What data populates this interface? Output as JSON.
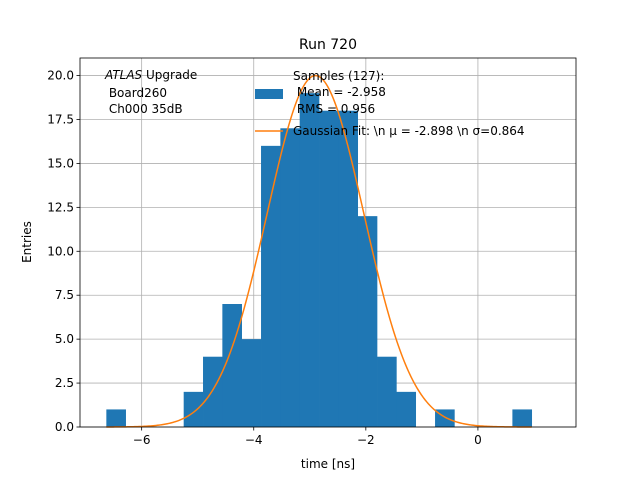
{
  "chart_data": {
    "type": "bar",
    "title": "Run 720",
    "xlabel": "time [ns]",
    "ylabel": "Entries",
    "xlim": [
      -7.1,
      1.75
    ],
    "ylim": [
      0,
      21
    ],
    "grid": true,
    "x_ticks": [
      -6,
      -4,
      -2,
      0
    ],
    "x_tick_labels": [
      "−6",
      "−4",
      "−2",
      "0"
    ],
    "y_ticks": [
      0,
      2.5,
      5,
      7.5,
      10,
      12.5,
      15,
      17.5,
      20
    ],
    "y_tick_labels": [
      "0.0",
      "2.5",
      "5.0",
      "7.5",
      "10.0",
      "12.5",
      "15.0",
      "17.5",
      "20.0"
    ],
    "histogram": {
      "name": "Samples (127):\n Mean = -2.958\n RMS = 0.956",
      "color": "#1f77b4",
      "bin_width": 0.345,
      "bins": [
        {
          "left": -6.63,
          "count": 1
        },
        {
          "left": -5.25,
          "count": 2
        },
        {
          "left": -4.905,
          "count": 4
        },
        {
          "left": -4.56,
          "count": 7
        },
        {
          "left": -4.215,
          "count": 5
        },
        {
          "left": -3.87,
          "count": 16
        },
        {
          "left": -3.525,
          "count": 17
        },
        {
          "left": -3.18,
          "count": 19
        },
        {
          "left": -2.835,
          "count": 18
        },
        {
          "left": -2.49,
          "count": 18
        },
        {
          "left": -2.145,
          "count": 12
        },
        {
          "left": -1.8,
          "count": 4
        },
        {
          "left": -1.455,
          "count": 2
        },
        {
          "left": -0.765,
          "count": 1
        },
        {
          "left": 0.615,
          "count": 1
        }
      ]
    },
    "fit": {
      "name": "Gaussian Fit: \\n μ = -2.898 \\n σ=0.864",
      "color": "#ff7f0e",
      "mu": -2.898,
      "sigma": 0.864,
      "amplitude": 20.0,
      "x_range": [
        -6.63,
        0.96
      ]
    },
    "legend_lines": [
      "Samples (127):",
      " Mean = -2.958",
      " RMS = 0.956",
      "Gaussian Fit: \\n μ = -2.898 \\n σ=0.864"
    ],
    "annotation": {
      "italic": "ATLAS",
      "rest": " Upgrade",
      "line2": " Board260",
      "line3": " Ch000 35dB"
    },
    "legend_position": "upper-right"
  }
}
